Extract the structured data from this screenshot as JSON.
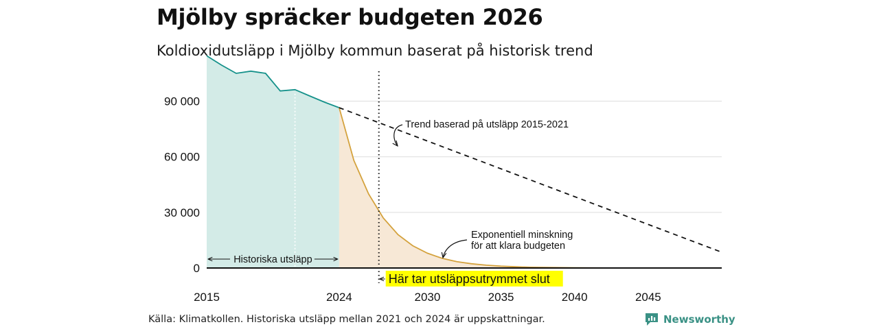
{
  "header": {
    "title": "Mjölby spräcker budgeten 2026",
    "subtitle": "Koldioxidutsläpp i Mjölby kommun baserat på historisk trend"
  },
  "footer": {
    "source": "Källa: Klimatkollen. Historiska utsläpp mellan 2021 och 2024 är uppskattningar.",
    "brand": "Newsworthy"
  },
  "colors": {
    "historical_line": "#15918a",
    "historical_fill": "#d3ebe7",
    "exponential_line": "#d4a23d",
    "exponential_fill": "#f7e8d6",
    "highlight": "#ffff00",
    "grid": "#dddddd",
    "brand": "#3a9185"
  },
  "icons": {
    "brand_logo": "newsworthy-logo-icon"
  },
  "chart_data": {
    "type": "area",
    "title": "Mjölby spräcker budgeten 2026",
    "subtitle": "Koldioxidutsläpp i Mjölby kommun baserat på historisk trend",
    "xlabel": "",
    "ylabel": "",
    "xlim": [
      2015,
      2050
    ],
    "ylim": [
      0,
      115000
    ],
    "x_ticks": [
      {
        "value": 2015,
        "label": "2015"
      },
      {
        "value": 2024,
        "label": "2024"
      },
      {
        "value": 2030,
        "label": "2030"
      },
      {
        "value": 2035,
        "label": "2035"
      },
      {
        "value": 2040,
        "label": "2040"
      },
      {
        "value": 2045,
        "label": "2045"
      }
    ],
    "y_ticks": [
      {
        "value": 0,
        "label": "0"
      },
      {
        "value": 30000,
        "label": "30 000"
      },
      {
        "value": 60000,
        "label": "60 000"
      },
      {
        "value": 90000,
        "label": "90 000"
      }
    ],
    "grid": true,
    "series": [
      {
        "name": "Historiska utsläpp",
        "type": "area",
        "x": [
          2015,
          2016,
          2017,
          2018,
          2019,
          2020,
          2021,
          2022,
          2023,
          2024
        ],
        "values": [
          114500,
          109500,
          105000,
          106200,
          105000,
          95500,
          96200,
          92800,
          89500,
          86500
        ]
      },
      {
        "name": "Exponentiell minskning för att klara budgeten",
        "type": "area",
        "x": [
          2024,
          2025,
          2026,
          2027,
          2028,
          2029,
          2030,
          2031,
          2032,
          2033,
          2034,
          2035,
          2036,
          2037,
          2038,
          2040,
          2042,
          2045,
          2050
        ],
        "values": [
          86500,
          58000,
          40000,
          27000,
          18000,
          12000,
          8000,
          5200,
          3400,
          2300,
          1500,
          1000,
          650,
          420,
          280,
          120,
          50,
          10,
          0
        ]
      },
      {
        "name": "Trend baserad på utsläpp 2015-2021",
        "type": "line",
        "style": "dashed",
        "x": [
          2024,
          2050
        ],
        "values": [
          86500,
          8500
        ]
      }
    ],
    "annotations": [
      {
        "id": "trend",
        "text": "Trend baserad på utsläpp 2015-2021"
      },
      {
        "id": "exp_line1",
        "text": "Exponentiell minskning"
      },
      {
        "id": "exp_line2",
        "text": "för att klara budgeten"
      },
      {
        "id": "historical",
        "text": "Historiska utsläpp"
      },
      {
        "id": "budget_end",
        "text": "Här tar utsläppsutrymmet slut",
        "x": 2026.7
      }
    ]
  }
}
